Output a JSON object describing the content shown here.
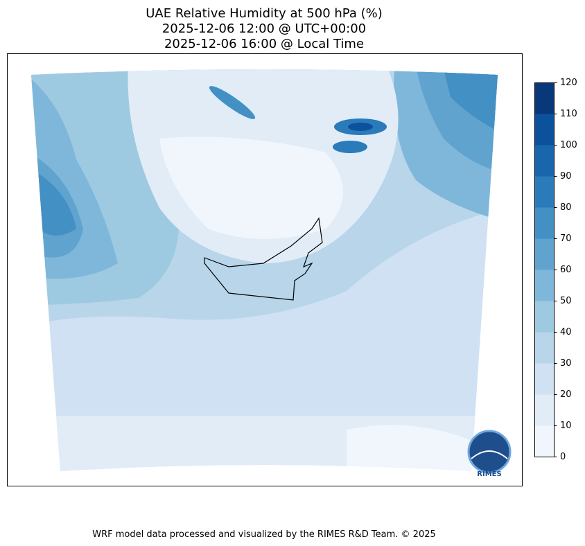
{
  "title": [
    "UAE Relative Humidity at 500 hPa (%)",
    "2025-12-06 12:00 @ UTC+00:00",
    "2025-12-06 16:00 @ Local Time"
  ],
  "colorbar": {
    "lim": [
      0,
      120
    ],
    "ticks": [
      0,
      10,
      20,
      30,
      40,
      50,
      60,
      70,
      80,
      90,
      100,
      110,
      120
    ],
    "colors": [
      "#f0f6fc",
      "#e1ecf7",
      "#cfe1f2",
      "#b8d5ea",
      "#9ecae1",
      "#7fb7da",
      "#60a3cf",
      "#4390c5",
      "#2b7bba",
      "#1966ad",
      "#0b519b",
      "#08387a"
    ]
  },
  "logo": "RIMES",
  "footer": "WRF model data processed and visualized by the RIMES R&D Team. © 2025"
}
